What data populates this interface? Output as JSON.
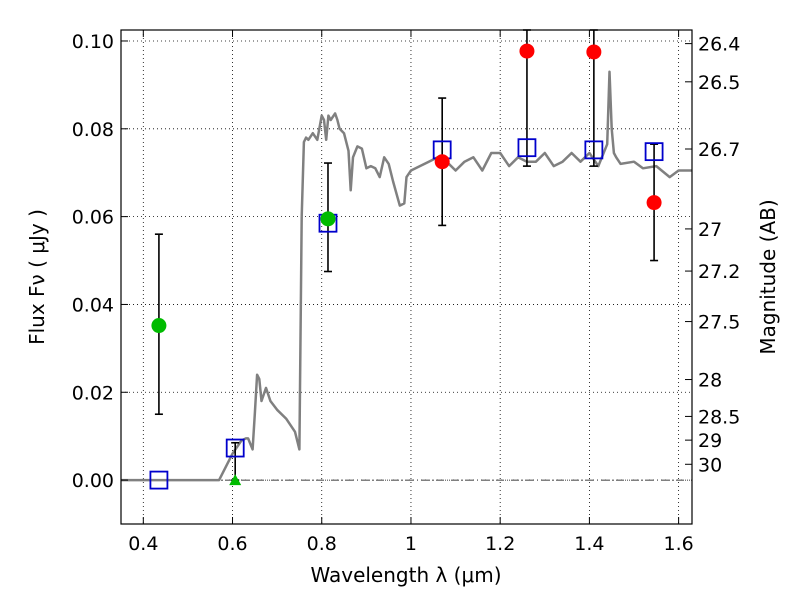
{
  "chart_data": {
    "type": "scatter",
    "xlabel": "Wavelength  λ (μm)",
    "ylabel": "Flux  Fν  ( μJy )",
    "ylabel_right": "Magnitude (AB)",
    "xlim": [
      0.35,
      1.63
    ],
    "ylim": [
      -0.01,
      0.1025
    ],
    "grid": true,
    "x_ticks": [
      0.4,
      0.6,
      0.8,
      1.0,
      1.2,
      1.4,
      1.6
    ],
    "x_tick_labels": [
      "0.4",
      "0.6",
      "0.8",
      "1",
      "1.2",
      "1.4",
      "1.6"
    ],
    "y_ticks": [
      0.0,
      0.02,
      0.04,
      0.06,
      0.08,
      0.1
    ],
    "y_tick_labels": [
      "0.00",
      "0.02",
      "0.04",
      "0.06",
      "0.08",
      "0.10"
    ],
    "mag_ticks": [
      {
        "label": "26.4",
        "flux": 0.0994
      },
      {
        "label": "26.5",
        "flux": 0.0907
      },
      {
        "label": "26.7",
        "flux": 0.0754
      },
      {
        "label": "27",
        "flux": 0.0572
      },
      {
        "label": "27.2",
        "flux": 0.0476
      },
      {
        "label": "27.5",
        "flux": 0.0361
      },
      {
        "label": "28",
        "flux": 0.0229
      },
      {
        "label": "28.5",
        "flux": 0.0145
      },
      {
        "label": "29",
        "flux": 0.0091
      },
      {
        "label": "30",
        "flux": 0.0036
      }
    ],
    "zero_line": 0,
    "model_spectrum": {
      "color": "#808080",
      "x": [
        0.35,
        0.57,
        0.6,
        0.62,
        0.63,
        0.635,
        0.645,
        0.65,
        0.655,
        0.66,
        0.665,
        0.675,
        0.685,
        0.7,
        0.72,
        0.74,
        0.75,
        0.755,
        0.76,
        0.765,
        0.77,
        0.78,
        0.79,
        0.8,
        0.805,
        0.81,
        0.815,
        0.82,
        0.83,
        0.835,
        0.84,
        0.85,
        0.86,
        0.865,
        0.87,
        0.88,
        0.89,
        0.9,
        0.91,
        0.92,
        0.93,
        0.94,
        0.95,
        0.96,
        0.975,
        0.985,
        0.99,
        1.0,
        1.02,
        1.04,
        1.06,
        1.08,
        1.1,
        1.12,
        1.14,
        1.16,
        1.18,
        1.2,
        1.22,
        1.24,
        1.26,
        1.28,
        1.3,
        1.32,
        1.34,
        1.36,
        1.38,
        1.4,
        1.42,
        1.44,
        1.445,
        1.45,
        1.455,
        1.46,
        1.47,
        1.5,
        1.52,
        1.55,
        1.58,
        1.6,
        1.63
      ],
      "y": [
        0.0,
        0.0,
        0.006,
        0.009,
        0.0095,
        0.0095,
        0.007,
        0.015,
        0.024,
        0.023,
        0.018,
        0.021,
        0.018,
        0.016,
        0.014,
        0.011,
        0.007,
        0.06,
        0.077,
        0.078,
        0.0775,
        0.079,
        0.0775,
        0.083,
        0.082,
        0.0775,
        0.083,
        0.082,
        0.0835,
        0.082,
        0.08,
        0.079,
        0.075,
        0.066,
        0.0735,
        0.076,
        0.0755,
        0.071,
        0.0715,
        0.071,
        0.069,
        0.0735,
        0.072,
        0.068,
        0.0625,
        0.063,
        0.069,
        0.0705,
        0.0715,
        0.0725,
        0.0735,
        0.0725,
        0.0705,
        0.0725,
        0.0735,
        0.0705,
        0.0745,
        0.0745,
        0.0715,
        0.0735,
        0.0725,
        0.0725,
        0.0745,
        0.0715,
        0.0725,
        0.0745,
        0.0725,
        0.0745,
        0.0715,
        0.0765,
        0.093,
        0.08,
        0.0745,
        0.0735,
        0.072,
        0.0725,
        0.071,
        0.0715,
        0.069,
        0.0705,
        0.0705
      ]
    },
    "series": [
      {
        "marker": "circle",
        "color": "#00bb00",
        "points": [
          {
            "x": 0.435,
            "y": 0.0352,
            "err_low": 0.015,
            "err_high": 0.056
          },
          {
            "x": 0.814,
            "y": 0.0595,
            "err_low": 0.0475,
            "err_high": 0.0722
          }
        ]
      },
      {
        "marker": "triangle",
        "color": "#00bb00",
        "points": [
          {
            "x": 0.606,
            "y": 0.0,
            "err_low": 0.0,
            "err_high": 0.0085
          }
        ]
      },
      {
        "marker": "circle",
        "color": "#ff0000",
        "points": [
          {
            "x": 1.07,
            "y": 0.0725,
            "err_low": 0.058,
            "err_high": 0.087
          },
          {
            "x": 1.26,
            "y": 0.0977,
            "err_low": 0.0715,
            "err_high": 0.1025
          },
          {
            "x": 1.41,
            "y": 0.0975,
            "err_low": 0.0715,
            "err_high": 0.1025
          },
          {
            "x": 1.545,
            "y": 0.0632,
            "err_low": 0.05,
            "err_high": 0.0765
          }
        ]
      },
      {
        "marker": "open-square",
        "color": "#0000cc",
        "points": [
          {
            "x": 0.435,
            "y": 0.0
          },
          {
            "x": 0.606,
            "y": 0.0073
          },
          {
            "x": 0.814,
            "y": 0.0585
          },
          {
            "x": 1.07,
            "y": 0.0752
          },
          {
            "x": 1.26,
            "y": 0.0757
          },
          {
            "x": 1.41,
            "y": 0.0752
          },
          {
            "x": 1.545,
            "y": 0.0748
          }
        ]
      }
    ]
  }
}
